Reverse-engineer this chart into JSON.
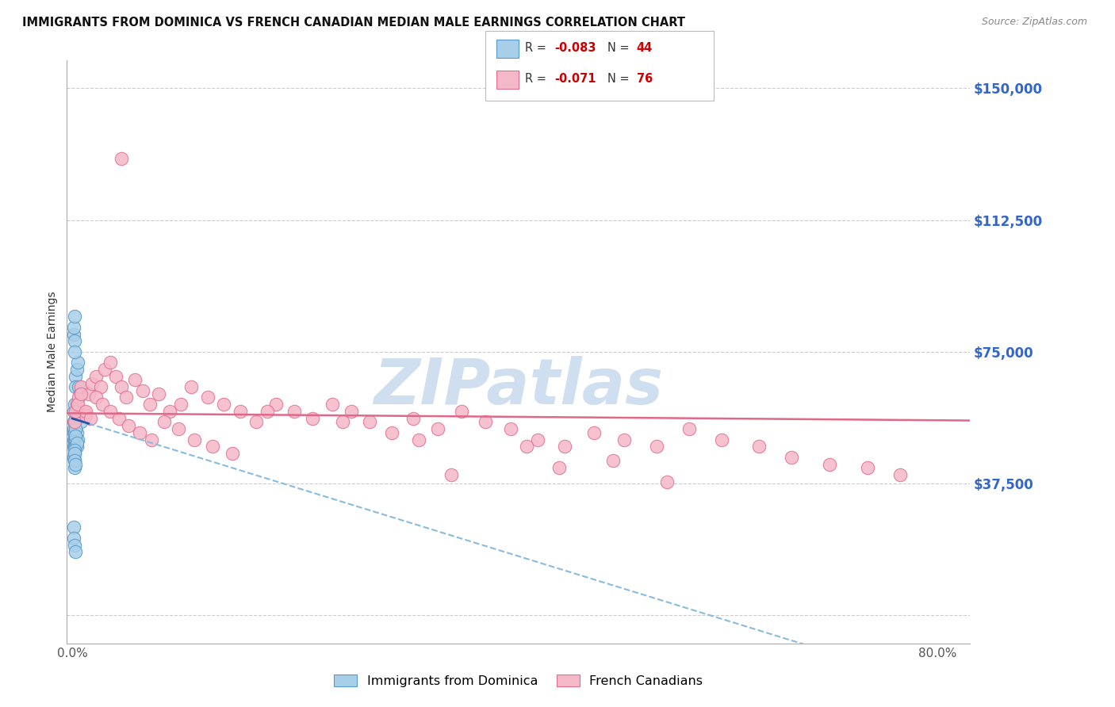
{
  "title": "IMMIGRANTS FROM DOMINICA VS FRENCH CANADIAN MEDIAN MALE EARNINGS CORRELATION CHART",
  "source": "Source: ZipAtlas.com",
  "ylabel": "Median Male Earnings",
  "yticks": [
    0,
    37500,
    75000,
    112500,
    150000
  ],
  "ytick_labels": [
    "",
    "$37,500",
    "$75,000",
    "$112,500",
    "$150,000"
  ],
  "ylim": [
    -8000,
    158000
  ],
  "xlim": [
    -0.005,
    0.83
  ],
  "xtick_labels": [
    "0.0%",
    "80.0%"
  ],
  "xticks": [
    0.0,
    0.8
  ],
  "background_color": "#ffffff",
  "grid_color": "#cccccc",
  "watermark": "ZIPatlas",
  "watermark_color": "#d0dff0",
  "tick_label_color": "#3366cc",
  "blue_color": "#a8cfe8",
  "blue_edge": "#5599cc",
  "blue_trend_solid": "#2255aa",
  "blue_trend_dash": "#88bbdd",
  "pink_color": "#f5b8c8",
  "pink_edge": "#e07090",
  "pink_trend": "#e06888",
  "label_dominica": "Immigrants from Dominica",
  "label_french": "French Canadians",
  "blue_x": [
    0.001,
    0.001,
    0.001,
    0.001,
    0.001,
    0.001,
    0.001,
    0.002,
    0.002,
    0.002,
    0.002,
    0.002,
    0.002,
    0.002,
    0.002,
    0.003,
    0.003,
    0.003,
    0.003,
    0.003,
    0.004,
    0.004,
    0.004,
    0.005,
    0.005,
    0.006,
    0.007,
    0.008,
    0.001,
    0.001,
    0.002,
    0.002,
    0.002,
    0.003,
    0.003,
    0.004,
    0.001,
    0.001,
    0.002,
    0.003,
    0.002,
    0.002,
    0.002,
    0.003
  ],
  "blue_y": [
    55000,
    58000,
    52000,
    50000,
    48000,
    53000,
    45000,
    60000,
    55000,
    52000,
    48000,
    46000,
    44000,
    42000,
    50000,
    68000,
    65000,
    55000,
    50000,
    48000,
    70000,
    52000,
    48000,
    72000,
    50000,
    65000,
    63000,
    55000,
    80000,
    82000,
    85000,
    78000,
    75000,
    53000,
    51000,
    49000,
    25000,
    22000,
    20000,
    18000,
    47000,
    46000,
    44000,
    43000
  ],
  "pink_x": [
    0.002,
    0.004,
    0.006,
    0.008,
    0.01,
    0.012,
    0.015,
    0.018,
    0.022,
    0.026,
    0.03,
    0.035,
    0.04,
    0.045,
    0.05,
    0.058,
    0.065,
    0.072,
    0.08,
    0.09,
    0.1,
    0.11,
    0.125,
    0.14,
    0.155,
    0.17,
    0.188,
    0.205,
    0.222,
    0.24,
    0.258,
    0.275,
    0.295,
    0.315,
    0.338,
    0.36,
    0.382,
    0.405,
    0.43,
    0.455,
    0.482,
    0.51,
    0.54,
    0.57,
    0.6,
    0.635,
    0.665,
    0.7,
    0.735,
    0.765,
    0.003,
    0.005,
    0.008,
    0.012,
    0.017,
    0.022,
    0.028,
    0.035,
    0.043,
    0.052,
    0.062,
    0.073,
    0.085,
    0.098,
    0.113,
    0.13,
    0.148,
    0.045,
    0.35,
    0.45,
    0.55,
    0.25,
    0.18,
    0.32,
    0.42,
    0.5
  ],
  "pink_y": [
    55000,
    60000,
    62000,
    65000,
    58000,
    57000,
    63000,
    66000,
    68000,
    65000,
    70000,
    72000,
    68000,
    65000,
    62000,
    67000,
    64000,
    60000,
    63000,
    58000,
    60000,
    65000,
    62000,
    60000,
    58000,
    55000,
    60000,
    58000,
    56000,
    60000,
    58000,
    55000,
    52000,
    56000,
    53000,
    58000,
    55000,
    53000,
    50000,
    48000,
    52000,
    50000,
    48000,
    53000,
    50000,
    48000,
    45000,
    43000,
    42000,
    40000,
    58000,
    60000,
    63000,
    58000,
    56000,
    62000,
    60000,
    58000,
    56000,
    54000,
    52000,
    50000,
    55000,
    53000,
    50000,
    48000,
    46000,
    130000,
    40000,
    42000,
    38000,
    55000,
    58000,
    50000,
    48000,
    44000
  ]
}
